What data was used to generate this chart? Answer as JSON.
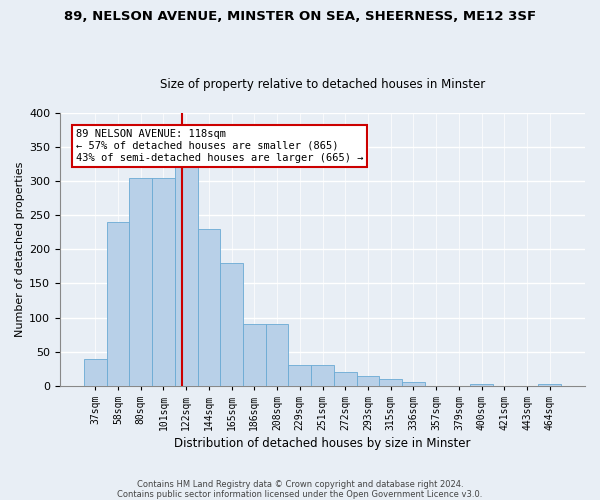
{
  "title_line1": "89, NELSON AVENUE, MINSTER ON SEA, SHEERNESS, ME12 3SF",
  "title_line2": "Size of property relative to detached houses in Minster",
  "xlabel": "Distribution of detached houses by size in Minster",
  "ylabel": "Number of detached properties",
  "bar_labels": [
    "37sqm",
    "58sqm",
    "80sqm",
    "101sqm",
    "122sqm",
    "144sqm",
    "165sqm",
    "186sqm",
    "208sqm",
    "229sqm",
    "251sqm",
    "272sqm",
    "293sqm",
    "315sqm",
    "336sqm",
    "357sqm",
    "379sqm",
    "400sqm",
    "421sqm",
    "443sqm",
    "464sqm"
  ],
  "bar_values": [
    40,
    240,
    305,
    305,
    325,
    230,
    180,
    90,
    90,
    30,
    30,
    20,
    15,
    10,
    5,
    0,
    0,
    3,
    0,
    0,
    3
  ],
  "bar_color": "#b8d0e8",
  "bar_edge_color": "#6aaad4",
  "background_color": "#e8eef5",
  "grid_color": "#ffffff",
  "vline_color": "#cc0000",
  "vline_x": 3.82,
  "annotation_text": "89 NELSON AVENUE: 118sqm\n← 57% of detached houses are smaller (865)\n43% of semi-detached houses are larger (665) →",
  "annotation_box_color": "#ffffff",
  "annotation_box_edge_color": "#cc0000",
  "footer_line1": "Contains HM Land Registry data © Crown copyright and database right 2024.",
  "footer_line2": "Contains public sector information licensed under the Open Government Licence v3.0.",
  "ylim": [
    0,
    400
  ],
  "yticks": [
    0,
    50,
    100,
    150,
    200,
    250,
    300,
    350,
    400
  ]
}
